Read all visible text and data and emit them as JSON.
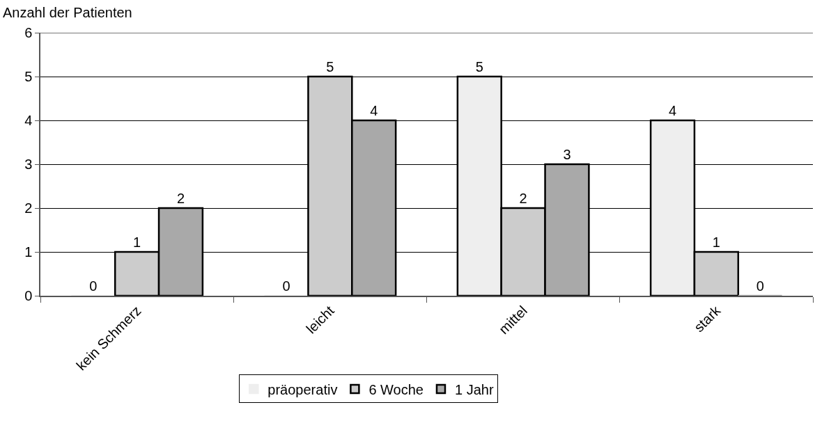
{
  "chart_data": {
    "type": "bar",
    "ylabel": "Anzahl der Patienten",
    "categories": [
      "kein Schmerz",
      "leicht",
      "mittel",
      "stark"
    ],
    "series": [
      {
        "name": "präoperativ",
        "color": "#eeeeee",
        "values": [
          0,
          0,
          5,
          4
        ]
      },
      {
        "name": "6 Woche",
        "color": "#cccccc",
        "values": [
          1,
          5,
          2,
          1
        ]
      },
      {
        "name": "1 Jahr",
        "color": "#a9a9a9",
        "values": [
          2,
          4,
          3,
          0
        ]
      }
    ],
    "ylim": [
      0,
      6
    ],
    "yticks": [
      0,
      1,
      2,
      3,
      4,
      5,
      6
    ],
    "grid": "y",
    "legend": "bottom",
    "data_labels": true
  }
}
